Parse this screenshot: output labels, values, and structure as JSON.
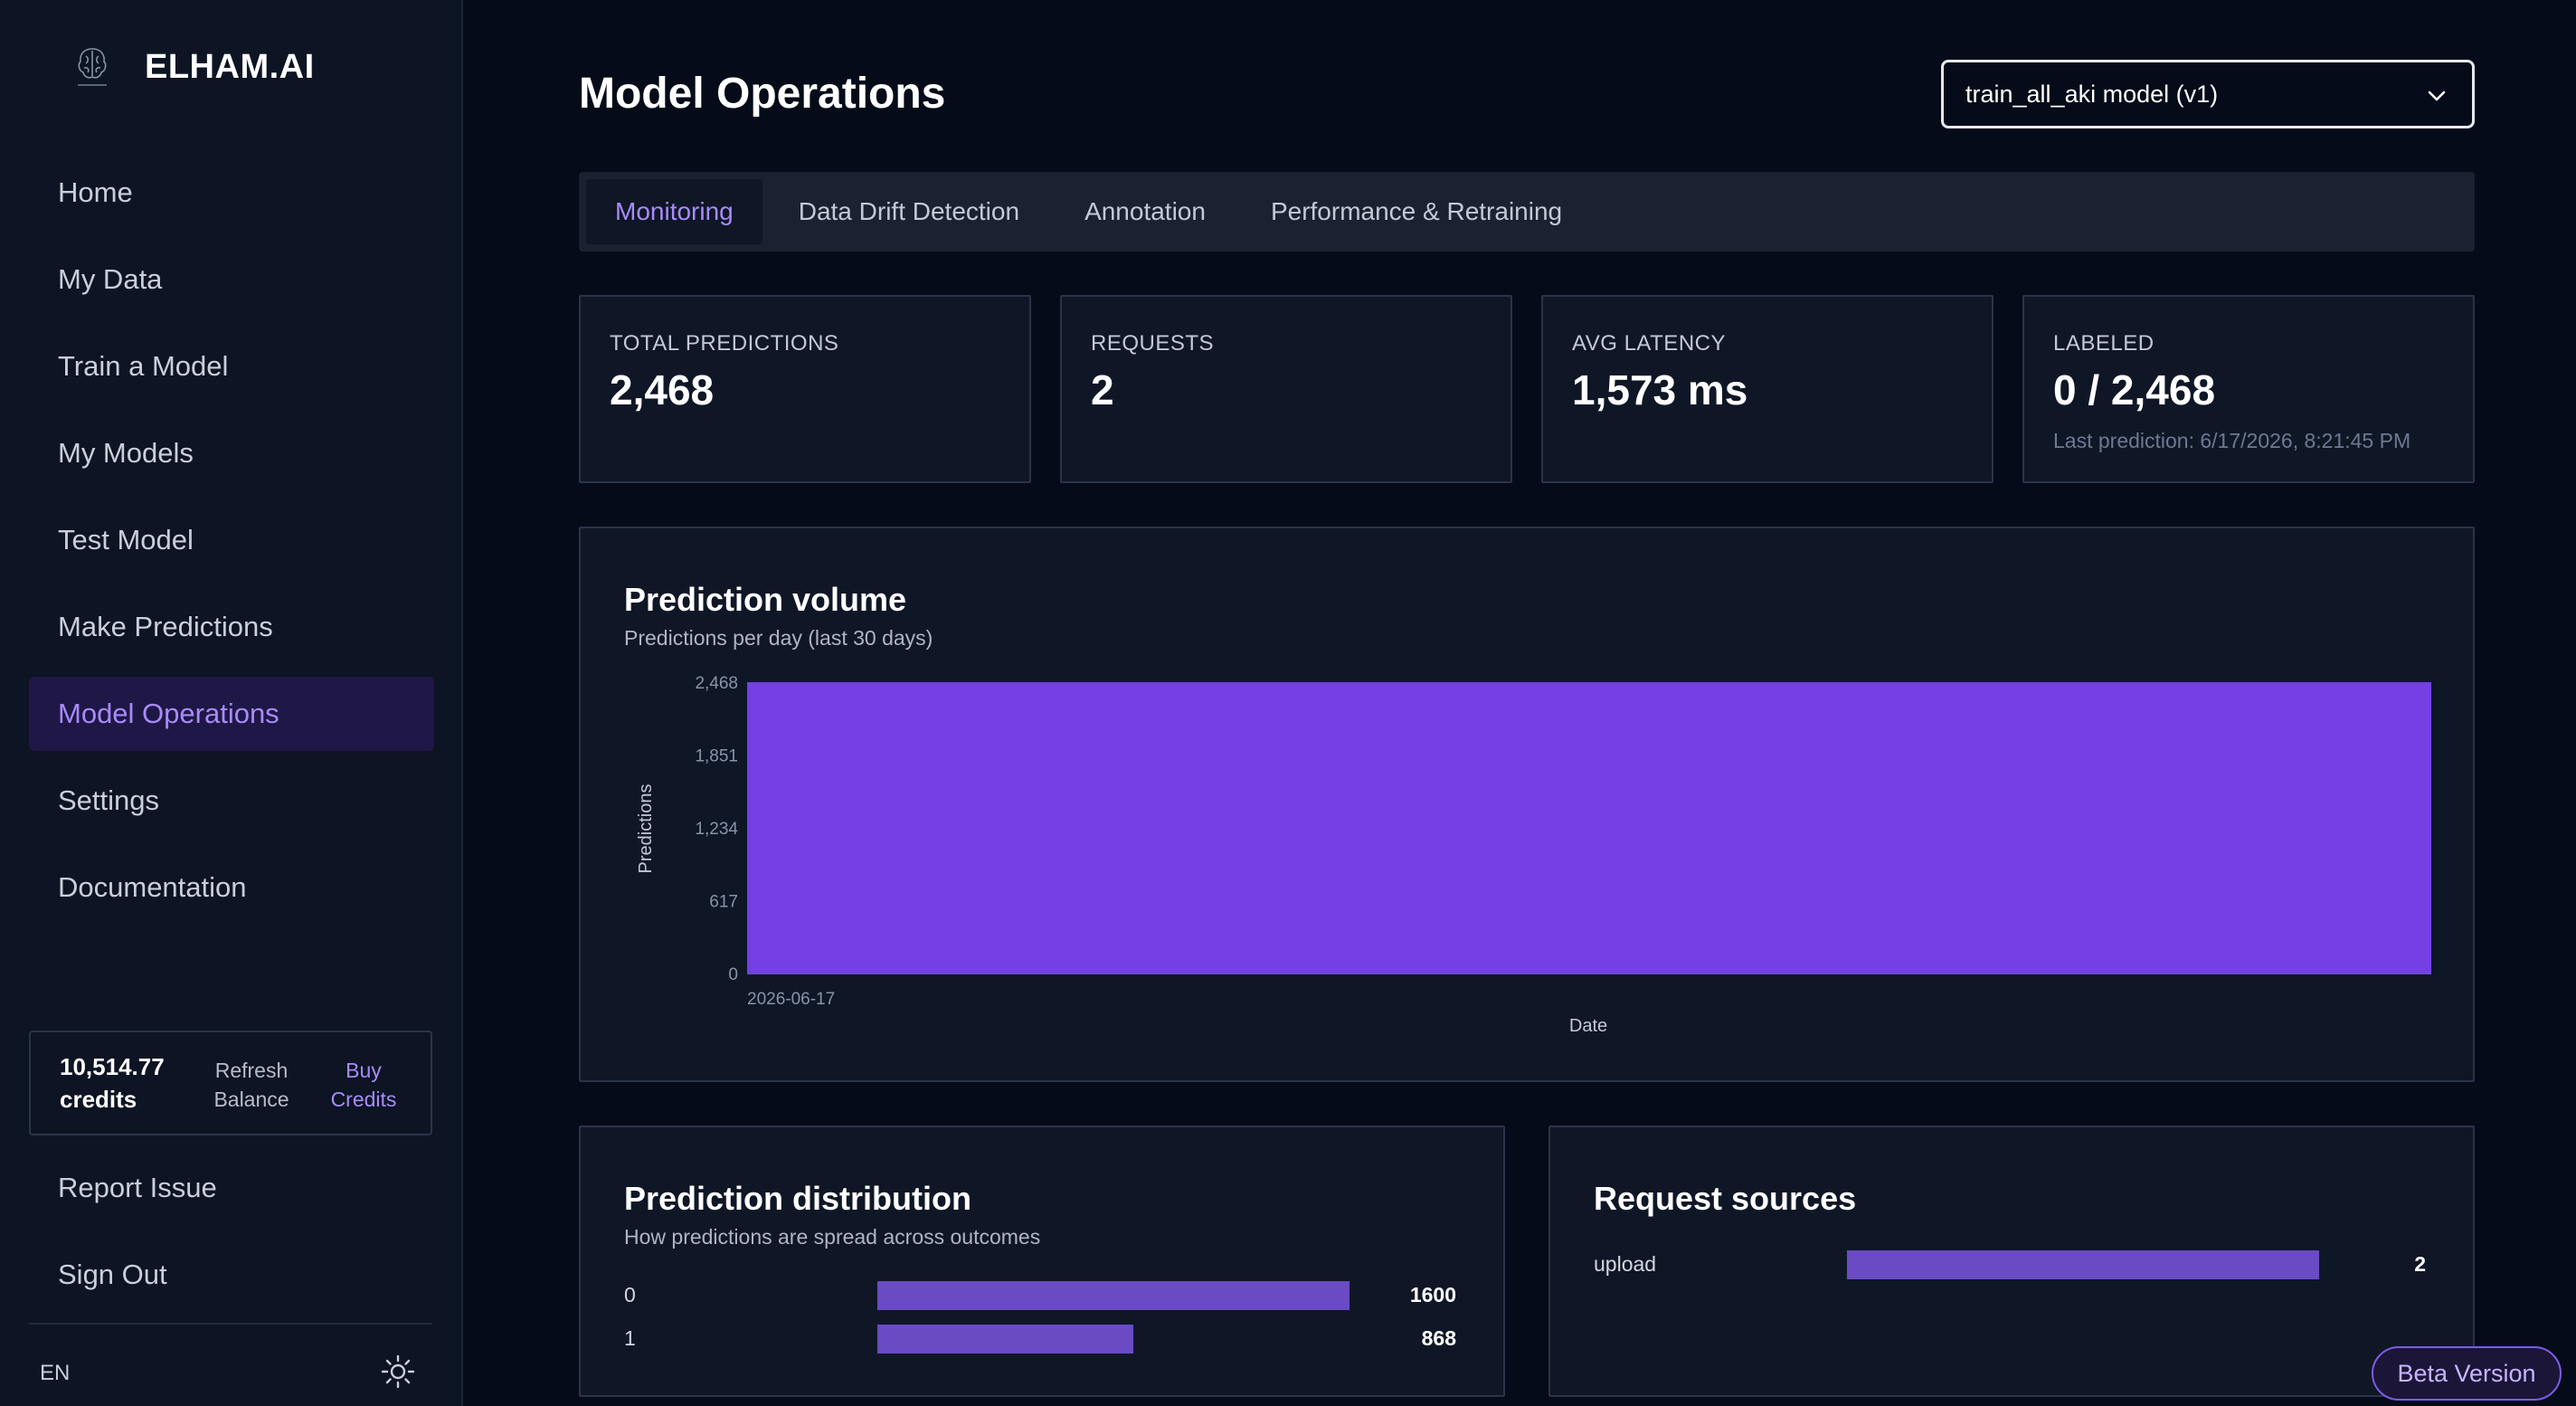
{
  "brand": {
    "name": "ELHAM.AI"
  },
  "sidebar": {
    "items": [
      {
        "label": "Home"
      },
      {
        "label": "My Data"
      },
      {
        "label": "Train a Model"
      },
      {
        "label": "My Models"
      },
      {
        "label": "Test Model"
      },
      {
        "label": "Make Predictions"
      },
      {
        "label": "Model Operations",
        "active": true
      },
      {
        "label": "Settings"
      },
      {
        "label": "Documentation"
      }
    ],
    "credits": {
      "amount": "10,514.77",
      "unit": "credits",
      "refresh_line1": "Refresh",
      "refresh_line2": "Balance",
      "buy_line1": "Buy",
      "buy_line2": "Credits"
    },
    "bottom_items": [
      {
        "label": "Report Issue"
      },
      {
        "label": "Sign Out"
      }
    ],
    "language": "EN",
    "theme_icon": "sun-icon"
  },
  "header": {
    "title": "Model Operations",
    "model_select": {
      "value": "train_all_aki model (v1)"
    }
  },
  "tabs": [
    {
      "label": "Monitoring",
      "active": true
    },
    {
      "label": "Data Drift Detection"
    },
    {
      "label": "Annotation"
    },
    {
      "label": "Performance & Retraining"
    }
  ],
  "stats": [
    {
      "label": "TOTAL PREDICTIONS",
      "value": "2,468"
    },
    {
      "label": "REQUESTS",
      "value": "2"
    },
    {
      "label": "AVG LATENCY",
      "value": "1,573 ms"
    },
    {
      "label": "LABELED",
      "value": "0 / 2,468",
      "sub": "Last prediction: 6/17/2026, 8:21:45 PM"
    }
  ],
  "volume_panel": {
    "title": "Prediction volume",
    "subtitle": "Predictions per day (last 30 days)"
  },
  "chart_data": [
    {
      "type": "area",
      "x": [
        "2026-06-17"
      ],
      "series": [
        {
          "values": [
            2468
          ]
        }
      ],
      "xlabel": "Date",
      "ylabel": "Predictions",
      "y_ticks": [
        "0",
        "617",
        "1,234",
        "1,851",
        "2,468"
      ],
      "x_ticks": [
        "2026-06-17"
      ],
      "ylim": [
        0,
        2468
      ],
      "color": "#7440e6"
    },
    {
      "type": "bar",
      "title": "Prediction distribution",
      "subtitle": "How predictions are spread across outcomes",
      "categories": [
        "0",
        "1"
      ],
      "values": [
        1600,
        868
      ],
      "color": "#6a4bc4"
    },
    {
      "type": "bar",
      "title": "Request sources",
      "categories": [
        "upload"
      ],
      "values": [
        2
      ],
      "color": "#6a4bc4"
    }
  ],
  "badge": {
    "label": "Beta Version"
  }
}
